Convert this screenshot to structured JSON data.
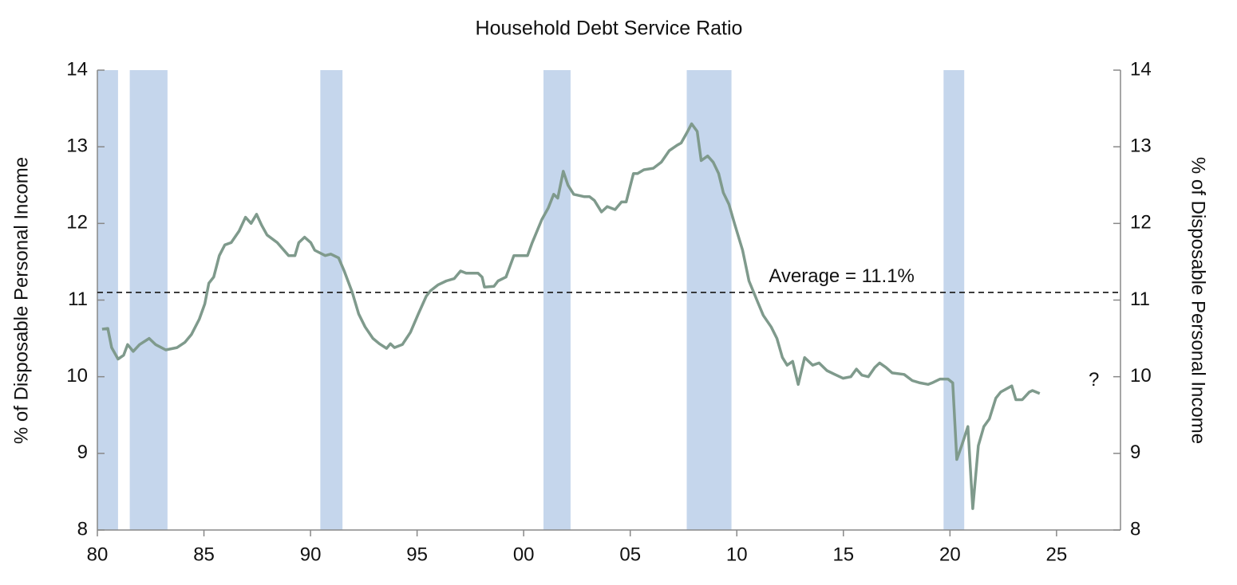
{
  "chart_data": {
    "type": "line",
    "title": "Household Debt Service Ratio",
    "y_label": "% of Disposable Personal Income",
    "y2_label": "% of Disposable Personal Income",
    "xlim": [
      1980,
      2028
    ],
    "xticks": [
      {
        "value": 1980,
        "label": "80"
      },
      {
        "value": 1985,
        "label": "85"
      },
      {
        "value": 1990,
        "label": "90"
      },
      {
        "value": 1995,
        "label": "95"
      },
      {
        "value": 2000,
        "label": "00"
      },
      {
        "value": 2005,
        "label": "05"
      },
      {
        "value": 2010,
        "label": "10"
      },
      {
        "value": 2015,
        "label": "15"
      },
      {
        "value": 2020,
        "label": "20"
      },
      {
        "value": 2025,
        "label": "25"
      }
    ],
    "ylim": [
      8,
      14
    ],
    "yticks": [
      8,
      9,
      10,
      11,
      12,
      13,
      14
    ],
    "y2lim": [
      8,
      14
    ],
    "y2ticks": [
      8,
      9,
      10,
      11,
      12,
      13,
      14
    ],
    "shade_color": "#c5d6ec",
    "shaded_periods": [
      {
        "start": 1980.0,
        "end": 1980.97
      },
      {
        "start": 1981.52,
        "end": 1983.29
      },
      {
        "start": 1990.46,
        "end": 1991.5
      },
      {
        "start": 2000.93,
        "end": 2002.2
      },
      {
        "start": 2007.65,
        "end": 2009.75
      },
      {
        "start": 2019.7,
        "end": 2020.67
      }
    ],
    "reference_line": 11.1,
    "annotations": [
      {
        "text": "Average = 11.1%",
        "x": 2011.5,
        "y": 11.3
      },
      {
        "text": "?",
        "x": 2026.5,
        "y": 9.95
      }
    ],
    "x": [
      1980.22,
      1980.49,
      1980.67,
      1980.97,
      1981.23,
      1981.42,
      1981.68,
      1981.98,
      1982.43,
      1982.73,
      1983.21,
      1983.74,
      1984.11,
      1984.41,
      1984.78,
      1985.04,
      1985.23,
      1985.46,
      1985.72,
      1985.98,
      1986.28,
      1986.65,
      1986.95,
      1987.21,
      1987.47,
      1987.7,
      1987.96,
      1988.44,
      1988.97,
      1989.27,
      1989.45,
      1989.72,
      1990.01,
      1990.2,
      1990.69,
      1990.95,
      1991.32,
      1991.58,
      1991.96,
      1992.26,
      1992.56,
      1992.93,
      1993.23,
      1993.57,
      1993.75,
      1993.94,
      1994.31,
      1994.69,
      1995.06,
      1995.43,
      1995.62,
      1995.99,
      1996.37,
      1996.74,
      1997.04,
      1997.3,
      1997.86,
      1998.05,
      1998.16,
      1998.61,
      1998.8,
      1999.17,
      1999.54,
      1999.92,
      2000.18,
      2000.4,
      2000.55,
      2000.85,
      2001.15,
      2001.41,
      2001.6,
      2001.86,
      2002.08,
      2002.35,
      2002.83,
      2003.09,
      2003.32,
      2003.65,
      2003.92,
      2004.29,
      2004.59,
      2004.81,
      2005.15,
      2005.34,
      2005.64,
      2006.08,
      2006.46,
      2006.83,
      2007.2,
      2007.39,
      2007.65,
      2007.88,
      2008.14,
      2008.33,
      2008.63,
      2008.89,
      2009.15,
      2009.37,
      2009.63,
      2009.89,
      2010.27,
      2010.57,
      2010.94,
      2011.24,
      2011.61,
      2011.88,
      2012.14,
      2012.36,
      2012.62,
      2012.88,
      2013.18,
      2013.56,
      2013.86,
      2014.23,
      2014.6,
      2014.98,
      2015.35,
      2015.61,
      2015.87,
      2016.17,
      2016.47,
      2016.7,
      2017.0,
      2017.29,
      2017.85,
      2018.23,
      2018.6,
      2018.98,
      2019.16,
      2019.54,
      2019.91,
      2020.13,
      2020.32,
      2020.55,
      2020.84,
      2021.07,
      2021.33,
      2021.59,
      2021.85,
      2022.15,
      2022.38,
      2022.9,
      2023.09,
      2023.39,
      2023.72,
      2023.87,
      2024.21
    ],
    "series": [
      {
        "name": "Household Debt Service Ratio",
        "color": "#7f9a8c",
        "values": [
          10.62,
          10.63,
          10.38,
          10.23,
          10.28,
          10.42,
          10.33,
          10.42,
          10.5,
          10.42,
          10.35,
          10.38,
          10.45,
          10.55,
          10.75,
          10.95,
          11.22,
          11.3,
          11.58,
          11.72,
          11.75,
          11.9,
          12.08,
          12.0,
          12.12,
          11.98,
          11.85,
          11.75,
          11.58,
          11.58,
          11.75,
          11.82,
          11.75,
          11.65,
          11.58,
          11.6,
          11.55,
          11.38,
          11.1,
          10.82,
          10.65,
          10.5,
          10.43,
          10.37,
          10.43,
          10.38,
          10.42,
          10.58,
          10.82,
          11.05,
          11.12,
          11.2,
          11.25,
          11.28,
          11.38,
          11.35,
          11.35,
          11.3,
          11.17,
          11.18,
          11.25,
          11.3,
          11.58,
          11.58,
          11.58,
          11.75,
          11.85,
          12.05,
          12.2,
          12.38,
          12.33,
          12.68,
          12.5,
          12.38,
          12.35,
          12.35,
          12.3,
          12.15,
          12.22,
          12.18,
          12.28,
          12.28,
          12.65,
          12.65,
          12.7,
          12.72,
          12.8,
          12.95,
          13.02,
          13.05,
          13.18,
          13.3,
          13.2,
          12.82,
          12.88,
          12.8,
          12.65,
          12.4,
          12.25,
          12.0,
          11.65,
          11.25,
          11.0,
          10.8,
          10.65,
          10.5,
          10.25,
          10.15,
          10.2,
          9.9,
          10.25,
          10.15,
          10.18,
          10.08,
          10.03,
          9.98,
          10.0,
          10.1,
          10.02,
          10.0,
          10.12,
          10.18,
          10.12,
          10.05,
          10.03,
          9.95,
          9.92,
          9.9,
          9.92,
          9.97,
          9.97,
          9.92,
          8.92,
          9.1,
          9.35,
          8.28,
          9.1,
          9.35,
          9.45,
          9.72,
          9.8,
          9.88,
          9.7,
          9.7,
          9.8,
          9.82,
          9.78
        ]
      }
    ]
  }
}
